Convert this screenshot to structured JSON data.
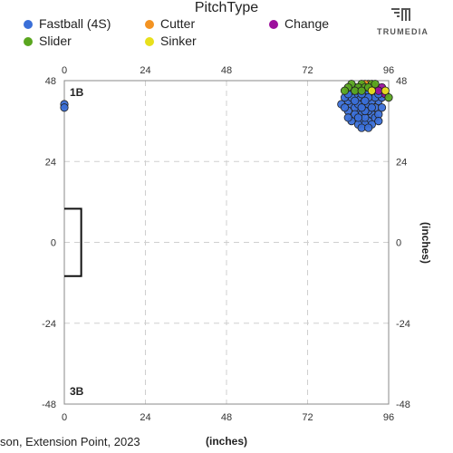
{
  "legend": {
    "title": "PitchType",
    "items": [
      {
        "label": "Fastball (4S)",
        "color": "#3a6fd8"
      },
      {
        "label": "Cutter",
        "color": "#f39322"
      },
      {
        "label": "Change",
        "color": "#9c0f9c"
      },
      {
        "label": "Slider",
        "color": "#5aa61f"
      },
      {
        "label": "Sinker",
        "color": "#e8e01c"
      }
    ]
  },
  "brand": {
    "name": "TRUMEDIA"
  },
  "footer": {
    "caption": "son, Extension Point, 2023",
    "unit": "(inches)"
  },
  "chart_data": {
    "type": "scatter",
    "xlabel": "(inches)",
    "ylabel": "(inches)",
    "xlim": [
      0,
      96
    ],
    "ylim": [
      -48,
      48
    ],
    "xticks": [
      0,
      24,
      48,
      72,
      96
    ],
    "yticks": [
      -48,
      -24,
      0,
      24,
      48
    ],
    "grid": true,
    "corner_labels": {
      "top": "1B",
      "bottom": "3B"
    },
    "base_box": {
      "x": [
        0,
        5
      ],
      "y": [
        -10,
        10
      ]
    },
    "series": [
      {
        "name": "Fastball (4S)",
        "color": "#3a6fd8",
        "points": [
          [
            0,
            41
          ],
          [
            0,
            40
          ],
          [
            88,
            42
          ],
          [
            89,
            40
          ],
          [
            87,
            39
          ],
          [
            90,
            41
          ],
          [
            91,
            38
          ],
          [
            86,
            37
          ],
          [
            88,
            36
          ],
          [
            90,
            36
          ],
          [
            92,
            40
          ],
          [
            93,
            42
          ],
          [
            85,
            41
          ],
          [
            84,
            39
          ],
          [
            89,
            44
          ],
          [
            87,
            43
          ],
          [
            91,
            44
          ],
          [
            92,
            37
          ],
          [
            89,
            35
          ],
          [
            87,
            35
          ],
          [
            86,
            40
          ],
          [
            90,
            39
          ],
          [
            88,
            38
          ],
          [
            93,
            38
          ],
          [
            84,
            42
          ],
          [
            86,
            44
          ],
          [
            91,
            42
          ],
          [
            88,
            46
          ],
          [
            86,
            46
          ],
          [
            90,
            45
          ],
          [
            94,
            40
          ],
          [
            85,
            36
          ],
          [
            82,
            41
          ],
          [
            83,
            40
          ],
          [
            89,
            37
          ],
          [
            87,
            41
          ],
          [
            91,
            35
          ],
          [
            93,
            36
          ],
          [
            88,
            34
          ],
          [
            86,
            38
          ],
          [
            85,
            43
          ],
          [
            92,
            43
          ],
          [
            90,
            43
          ],
          [
            84,
            37
          ],
          [
            87,
            37
          ],
          [
            89,
            39
          ],
          [
            91,
            40
          ],
          [
            88,
            40
          ],
          [
            86,
            42
          ],
          [
            83,
            43
          ],
          [
            94,
            43
          ],
          [
            90,
            34
          ],
          [
            87,
            45
          ],
          [
            92,
            45
          ],
          [
            85,
            45
          ],
          [
            89,
            42
          ],
          [
            88,
            44
          ],
          [
            91,
            46
          ],
          [
            84,
            44
          ],
          [
            93,
            44
          ]
        ]
      },
      {
        "name": "Cutter",
        "color": "#f39322",
        "points": [
          [
            90,
            47
          ],
          [
            92,
            46
          ],
          [
            89,
            47
          ]
        ]
      },
      {
        "name": "Change",
        "color": "#9c0f9c",
        "points": [
          [
            94,
            46
          ],
          [
            93,
            45
          ],
          [
            95,
            44
          ]
        ]
      },
      {
        "name": "Slider",
        "color": "#5aa61f",
        "points": [
          [
            85,
            47
          ],
          [
            88,
            47
          ],
          [
            87,
            46
          ],
          [
            86,
            45
          ],
          [
            84,
            46
          ],
          [
            89,
            46
          ],
          [
            91,
            47
          ],
          [
            90,
            46
          ],
          [
            96,
            43
          ],
          [
            83,
            45
          ],
          [
            92,
            47
          ],
          [
            88,
            45
          ]
        ]
      },
      {
        "name": "Sinker",
        "color": "#e8e01c",
        "points": [
          [
            91,
            45
          ],
          [
            95,
            45
          ]
        ]
      }
    ]
  }
}
